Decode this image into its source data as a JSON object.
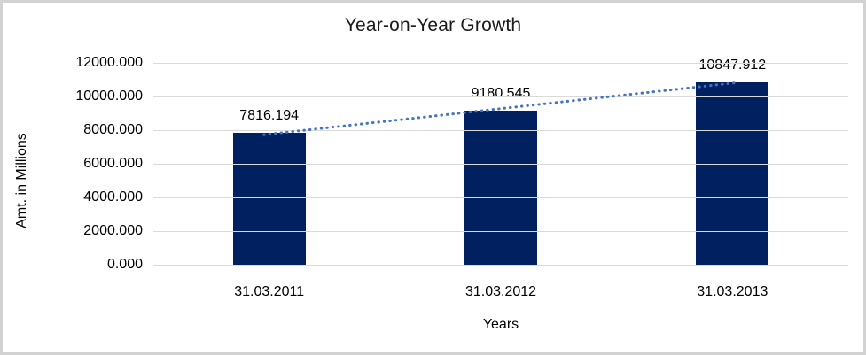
{
  "chart_data": {
    "type": "bar",
    "title": "Year-on-Year Growth",
    "xlabel": "Years",
    "ylabel": "Amt. in Millions",
    "categories": [
      "31.03.2011",
      "31.03.2012",
      "31.03.2013"
    ],
    "values": [
      7816.194,
      9180.545,
      10847.912
    ],
    "data_labels": [
      "7816.194",
      "9180.545",
      "10847.912"
    ],
    "y_ticks": [
      {
        "value": 0,
        "label": "0.000"
      },
      {
        "value": 2000,
        "label": "2000.000"
      },
      {
        "value": 4000,
        "label": "4000.000"
      },
      {
        "value": 6000,
        "label": "6000.000"
      },
      {
        "value": 8000,
        "label": "8000.000"
      },
      {
        "value": 10000,
        "label": "10000.000"
      },
      {
        "value": 12000,
        "label": "12000.000"
      }
    ],
    "ylim": [
      0,
      12000
    ],
    "grid": true,
    "legend": "none",
    "trendline": {
      "style": "dotted",
      "color": "#4472c4"
    },
    "colors": {
      "bar": "#002060",
      "gridline": "#d9d9d9",
      "axis_line": "#d9d9d9",
      "frame_border": "#d2d2d2",
      "text": "#000000",
      "title_text": "#1a1a1a"
    }
  }
}
